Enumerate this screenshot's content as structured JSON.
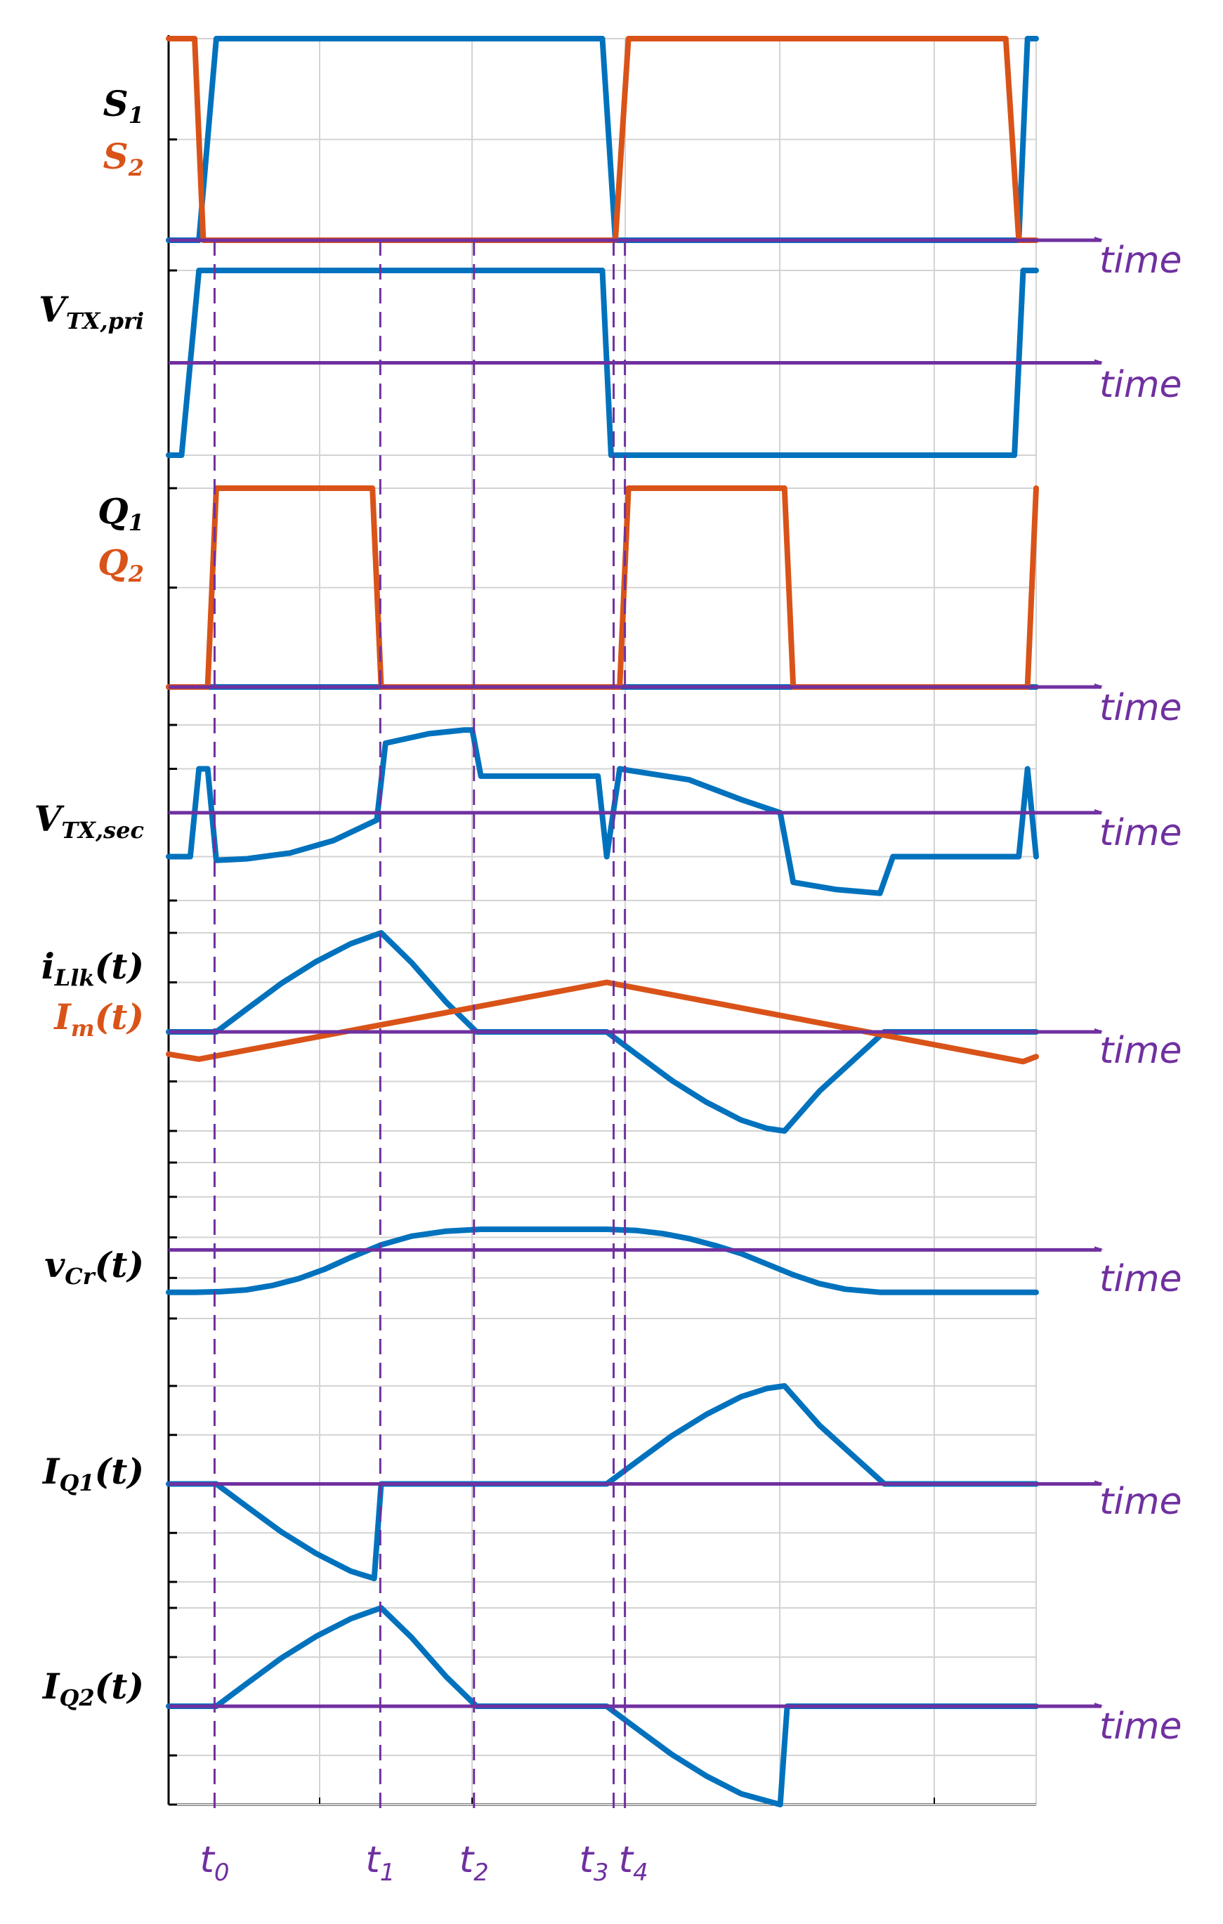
{
  "colors": {
    "blue": "#0072bd",
    "orange": "#d95319",
    "purple": "#7030a0",
    "black": "#000000",
    "grid": "#d3d3d3"
  },
  "chart_data": {
    "type": "line",
    "title": "",
    "x_range": [
      0,
      100
    ],
    "axis_label": "time",
    "panels": [
      {
        "id": "s",
        "labels": [
          {
            "text": "S",
            "sub": "1",
            "color": "black"
          },
          {
            "text": "S",
            "sub": "2",
            "color": "orange"
          }
        ],
        "y_range": [
          0,
          1
        ],
        "ticks": [
          0,
          0.5,
          1
        ],
        "zero": 0,
        "series": [
          {
            "name": "S1",
            "color": "blue",
            "x": [
              0,
              3.5,
              5.5,
              50.0,
              51.5,
              98.0,
              99.0,
              100
            ],
            "y": [
              0,
              0,
              1,
              1,
              0,
              0,
              1,
              1
            ]
          },
          {
            "name": "S2",
            "color": "orange",
            "x": [
              0,
              3.0,
              4.0,
              51.5,
              53.0,
              96.5,
              98.0,
              100
            ],
            "y": [
              1,
              1,
              0,
              0,
              1,
              1,
              0,
              0
            ]
          }
        ]
      },
      {
        "id": "vtxpri",
        "labels": [
          {
            "text": "V",
            "sub": "TX,pri",
            "color": "black"
          }
        ],
        "y_range": [
          -1,
          1
        ],
        "ticks": [
          -1,
          1
        ],
        "zero": 0,
        "series": [
          {
            "name": "V_TX,pri",
            "color": "blue",
            "x": [
              0,
              1.5,
              3.5,
              50.0,
              51.0,
              97.5,
              98.5,
              100
            ],
            "y": [
              -1,
              -1,
              1,
              1,
              -1,
              -1,
              1,
              1
            ]
          }
        ]
      },
      {
        "id": "q",
        "labels": [
          {
            "text": "Q",
            "sub": "1",
            "color": "black"
          },
          {
            "text": "Q",
            "sub": "2",
            "color": "orange"
          }
        ],
        "y_range": [
          0,
          1
        ],
        "ticks": [
          0,
          0.5,
          1
        ],
        "zero": 0,
        "series": [
          {
            "name": "Q1",
            "color": "blue",
            "x": [
              0,
              100
            ],
            "y": [
              0,
              0
            ]
          },
          {
            "name": "Q2",
            "color": "orange",
            "x": [
              0,
              4.5,
              5.5,
              23.5,
              24.5,
              52.0,
              53.0,
              71.0,
              72.0,
              99.0,
              100
            ],
            "y": [
              0,
              0,
              1,
              1,
              0,
              0,
              1,
              1,
              0,
              0,
              1
            ]
          }
        ]
      },
      {
        "id": "vtxsec",
        "labels": [
          {
            "text": "V",
            "sub": "TX,sec",
            "color": "black"
          }
        ],
        "y_range": [
          -1.2,
          1.2
        ],
        "ticks": [
          -1.2,
          -0.6,
          0,
          0.6,
          1.2
        ],
        "zero": 0,
        "series": [
          {
            "name": "V_TX,sec",
            "color": "blue",
            "x": [
              0,
              2.5,
              3.5,
              4.5,
              5.5,
              9,
              14,
              19,
              24,
              25,
              30,
              34,
              35,
              36,
              49.5,
              50.5,
              52.0,
              53,
              60,
              66,
              70.5,
              72,
              77,
              82,
              83.5,
              98,
              99,
              100
            ],
            "y": [
              -0.6,
              -0.6,
              0.6,
              0.6,
              -0.65,
              -0.63,
              -0.55,
              -0.38,
              -0.1,
              0.95,
              1.08,
              1.13,
              1.13,
              0.5,
              0.5,
              -0.6,
              0.6,
              0.58,
              0.45,
              0.18,
              0,
              -0.95,
              -1.05,
              -1.1,
              -0.6,
              -0.6,
              0.6,
              -0.6
            ]
          }
        ]
      },
      {
        "id": "ilk",
        "labels": [
          {
            "text": "i",
            "sub": "Llk",
            "tail": "(t)",
            "color": "black"
          },
          {
            "text": "I",
            "sub": "m",
            "tail": "(t)",
            "color": "orange"
          }
        ],
        "y_range": [
          -2,
          2
        ],
        "ticks": [
          -2,
          -1,
          0,
          1,
          2
        ],
        "zero": 0,
        "series": [
          {
            "name": "i_Llk(t)",
            "color": "blue",
            "x": [
              0,
              5.5,
              9,
              13,
              17,
              21,
              24.5,
              28,
              32,
              35.5,
              50.5,
              54,
              58,
              62,
              66,
              69,
              71,
              75,
              82.5,
              100
            ],
            "y": [
              0,
              0,
              0.46,
              0.98,
              1.42,
              1.78,
              2.0,
              1.4,
              0.6,
              0,
              0,
              -0.46,
              -0.98,
              -1.42,
              -1.78,
              -1.95,
              -2.0,
              -1.2,
              0,
              0
            ]
          },
          {
            "name": "I_m(t)",
            "color": "orange",
            "x": [
              0,
              3.5,
              50.5,
              98.5,
              100
            ],
            "y": [
              -0.45,
              -0.55,
              1.0,
              -0.6,
              -0.5
            ]
          }
        ]
      },
      {
        "id": "vcr",
        "labels": [
          {
            "text": "v",
            "sub": "Cr",
            "tail": "(t)",
            "color": "black"
          }
        ],
        "y_range": [
          -1.1,
          1.4
        ],
        "ticks": [
          -1.1,
          -0.45,
          0.2,
          0.85,
          1.4
        ],
        "zero": 0,
        "series": [
          {
            "name": "v_Cr(t)",
            "color": "blue",
            "x": [
              0,
              3,
              6,
              9,
              12,
              15,
              18,
              21,
              24.5,
              28,
              32,
              36,
              50.5,
              54,
              57,
              60,
              63,
              66,
              69,
              72,
              75,
              78,
              82,
              100
            ],
            "y": [
              -0.68,
              -0.68,
              -0.67,
              -0.64,
              -0.57,
              -0.46,
              -0.31,
              -0.12,
              0.08,
              0.22,
              0.3,
              0.33,
              0.33,
              0.31,
              0.26,
              0.18,
              0.07,
              -0.06,
              -0.23,
              -0.4,
              -0.54,
              -0.63,
              -0.68,
              -0.68
            ]
          }
        ]
      },
      {
        "id": "iq1",
        "labels": [
          {
            "text": "I",
            "sub": "Q1",
            "tail": "(t)",
            "color": "black"
          }
        ],
        "y_range": [
          -2,
          2
        ],
        "ticks": [
          -2,
          -1,
          0,
          1,
          2
        ],
        "zero": 0,
        "series": [
          {
            "name": "I_Q1(t)",
            "color": "blue",
            "x": [
              0,
              5.5,
              9,
              13,
              17,
              21,
              23.7,
              24.5,
              50.5,
              54,
              58,
              62,
              66,
              69,
              71,
              75,
              82.5,
              100
            ],
            "y": [
              0,
              0,
              -0.46,
              -0.98,
              -1.42,
              -1.78,
              -1.93,
              0,
              0,
              0.46,
              0.98,
              1.42,
              1.78,
              1.95,
              2.0,
              1.2,
              0,
              0
            ]
          }
        ]
      },
      {
        "id": "iq2",
        "labels": [
          {
            "text": "I",
            "sub": "Q2",
            "tail": "(t)",
            "color": "black"
          }
        ],
        "y_range": [
          -2,
          2
        ],
        "ticks": [
          -2,
          -1,
          0,
          1,
          2
        ],
        "zero": 0,
        "series": [
          {
            "name": "I_Q2(t)",
            "color": "blue",
            "x": [
              0,
              5.5,
              9,
              13,
              17,
              21,
              24.5,
              28,
              32,
              35.5,
              50.5,
              54,
              58,
              62,
              66,
              70.5,
              71.3,
              100
            ],
            "y": [
              0,
              0,
              0.46,
              0.98,
              1.42,
              1.78,
              2.0,
              1.4,
              0.6,
              0,
              0,
              -0.46,
              -0.98,
              -1.42,
              -1.78,
              -2.0,
              0,
              0
            ]
          }
        ]
      }
    ],
    "markers": [
      {
        "label": "t",
        "sub": "0",
        "x": 5.3
      },
      {
        "label": "t",
        "sub": "1",
        "x": 24.4
      },
      {
        "label": "t",
        "sub": "2",
        "x": 35.2
      },
      {
        "label": "t",
        "sub": "3",
        "x": 51.3
      },
      {
        "label": "t",
        "sub": "4",
        "x": 52.6
      }
    ]
  }
}
